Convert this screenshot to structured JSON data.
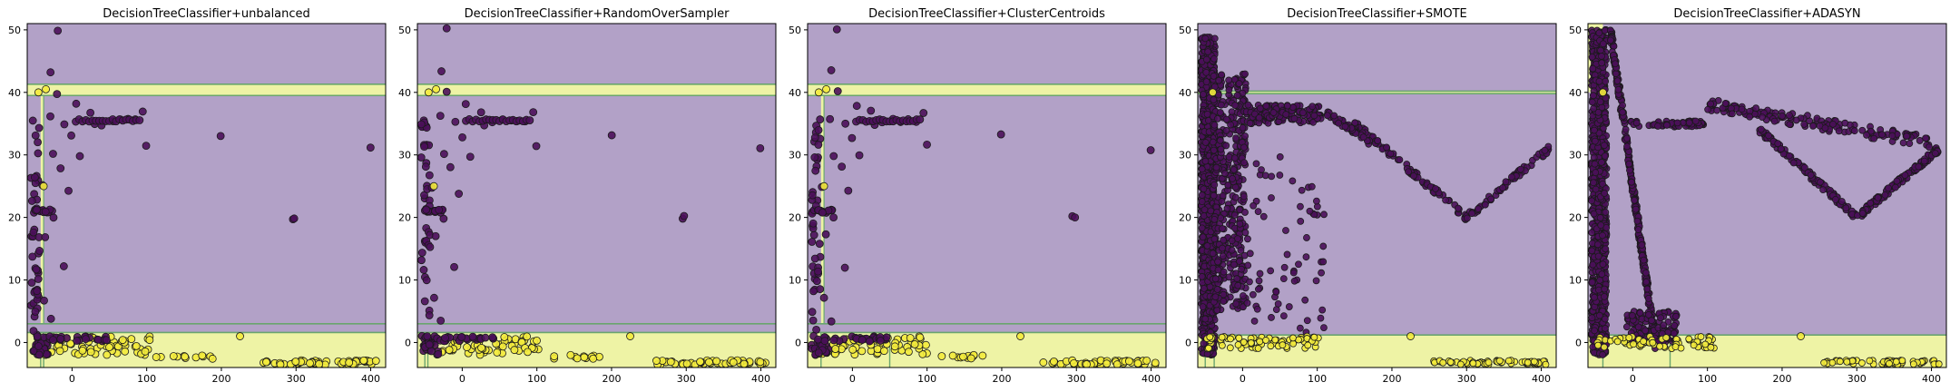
{
  "chart_data": [
    {
      "type": "scatter",
      "title": "DecisionTreeClassifier+unbalanced",
      "xlim": [
        -60,
        420
      ],
      "ylim": [
        -4,
        51
      ],
      "xticks": [
        0,
        100,
        200,
        300,
        400
      ],
      "yticks": [
        0,
        10,
        20,
        30,
        40,
        50
      ],
      "colors": {
        "region_major": "#b2a1c7",
        "region_minor": "#eef3a5",
        "boundary": "#6aa56e",
        "point_major": "#4b0f5a",
        "point_minor": "#f3eb3c",
        "edge": "#1a1a1a"
      },
      "regions": [
        {
          "class": "minor",
          "x": [
            -60,
            420
          ],
          "y": [
            -4,
            1.6
          ]
        },
        {
          "class": "major",
          "x": [
            -60,
            420
          ],
          "y": [
            1.6,
            3.0
          ]
        },
        {
          "class": "major",
          "x": [
            -60,
            420
          ],
          "y": [
            3.0,
            39.5
          ]
        },
        {
          "class": "minor",
          "x": [
            -60,
            420
          ],
          "y": [
            39.5,
            41.3
          ]
        },
        {
          "class": "major",
          "x": [
            -60,
            420
          ],
          "y": [
            41.3,
            51
          ]
        },
        {
          "class": "minor",
          "x": [
            -42,
            -38
          ],
          "y": [
            3.0,
            39.5
          ]
        }
      ],
      "boundaries": {
        "h": [
          1.6,
          3.0,
          39.5,
          41.3
        ],
        "v": [
          -42,
          -38
        ]
      },
      "pattern": "sparse"
    },
    {
      "type": "scatter",
      "title": "DecisionTreeClassifier+RandomOverSampler",
      "xlim": [
        -60,
        420
      ],
      "ylim": [
        -4,
        51
      ],
      "xticks": [
        0,
        100,
        200,
        300,
        400
      ],
      "yticks": [
        0,
        10,
        20,
        30,
        40,
        50
      ],
      "colors": {
        "region_major": "#b2a1c7",
        "region_minor": "#eef3a5",
        "boundary": "#6aa56e",
        "point_major": "#4b0f5a",
        "point_minor": "#f3eb3c",
        "edge": "#1a1a1a"
      },
      "regions": [
        {
          "class": "minor",
          "x": [
            -60,
            420
          ],
          "y": [
            -4,
            1.6
          ]
        },
        {
          "class": "major",
          "x": [
            -60,
            420
          ],
          "y": [
            1.6,
            3.0
          ]
        },
        {
          "class": "major",
          "x": [
            -60,
            420
          ],
          "y": [
            3.0,
            39.5
          ]
        },
        {
          "class": "minor",
          "x": [
            -60,
            420
          ],
          "y": [
            39.5,
            41.3
          ]
        },
        {
          "class": "major",
          "x": [
            -60,
            420
          ],
          "y": [
            41.3,
            51
          ]
        }
      ],
      "boundaries": {
        "h": [
          1.6,
          3.0,
          39.5,
          41.3
        ],
        "v": [
          -50,
          -46
        ]
      },
      "pattern": "sparse"
    },
    {
      "type": "scatter",
      "title": "DecisionTreeClassifier+ClusterCentroids",
      "xlim": [
        -60,
        420
      ],
      "ylim": [
        -4,
        51
      ],
      "xticks": [
        0,
        100,
        200,
        300,
        400
      ],
      "yticks": [
        0,
        10,
        20,
        30,
        40,
        50
      ],
      "colors": {
        "region_major": "#b2a1c7",
        "region_minor": "#eef3a5",
        "boundary": "#6aa56e",
        "point_major": "#4b0f5a",
        "point_minor": "#f3eb3c",
        "edge": "#1a1a1a"
      },
      "regions": [
        {
          "class": "minor",
          "x": [
            -60,
            420
          ],
          "y": [
            -4,
            1.6
          ]
        },
        {
          "class": "major",
          "x": [
            -60,
            420
          ],
          "y": [
            1.6,
            3.0
          ]
        },
        {
          "class": "major",
          "x": [
            -60,
            420
          ],
          "y": [
            3.0,
            39.5
          ]
        },
        {
          "class": "minor",
          "x": [
            -60,
            420
          ],
          "y": [
            39.5,
            41.3
          ]
        },
        {
          "class": "major",
          "x": [
            -60,
            420
          ],
          "y": [
            41.3,
            51
          ]
        },
        {
          "class": "minor",
          "x": [
            -42,
            -38
          ],
          "y": [
            3.0,
            39.5
          ]
        }
      ],
      "boundaries": {
        "h": [
          1.6,
          3.0,
          39.5,
          41.3
        ],
        "v": [
          -42,
          50
        ]
      },
      "pattern": "sparse"
    },
    {
      "type": "scatter",
      "title": "DecisionTreeClassifier+SMOTE",
      "xlim": [
        -60,
        420
      ],
      "ylim": [
        -4,
        51
      ],
      "xticks": [
        0,
        100,
        200,
        300,
        400
      ],
      "yticks": [
        0,
        10,
        20,
        30,
        40,
        50
      ],
      "colors": {
        "region_major": "#b2a1c7",
        "region_minor": "#eef3a5",
        "boundary": "#6aa56e",
        "point_major": "#4b0f5a",
        "point_minor": "#f3eb3c",
        "edge": "#1a1a1a"
      },
      "regions": [
        {
          "class": "minor",
          "x": [
            -60,
            420
          ],
          "y": [
            -4,
            1.2
          ]
        },
        {
          "class": "major",
          "x": [
            -60,
            420
          ],
          "y": [
            1.2,
            39.8
          ]
        },
        {
          "class": "minor",
          "x": [
            -60,
            420
          ],
          "y": [
            39.8,
            40.2
          ]
        },
        {
          "class": "major",
          "x": [
            -60,
            420
          ],
          "y": [
            40.2,
            51
          ]
        }
      ],
      "boundaries": {
        "h": [
          1.2,
          39.8,
          40.2
        ],
        "v": [
          -50,
          -38
        ]
      },
      "pattern": "dense-smote"
    },
    {
      "type": "scatter",
      "title": "DecisionTreeClassifier+ADASYN",
      "xlim": [
        -60,
        420
      ],
      "ylim": [
        -4,
        51
      ],
      "xticks": [
        0,
        100,
        200,
        300,
        400
      ],
      "yticks": [
        0,
        10,
        20,
        30,
        40,
        50
      ],
      "colors": {
        "region_major": "#b2a1c7",
        "region_minor": "#eef3a5",
        "boundary": "#6aa56e",
        "point_major": "#4b0f5a",
        "point_minor": "#f3eb3c",
        "edge": "#1a1a1a"
      },
      "regions": [
        {
          "class": "minor",
          "x": [
            -60,
            420
          ],
          "y": [
            -4,
            1.2
          ]
        },
        {
          "class": "major",
          "x": [
            -60,
            420
          ],
          "y": [
            1.2,
            51
          ]
        },
        {
          "class": "minor",
          "x": [
            -60,
            -40
          ],
          "y": [
            40,
            51
          ]
        }
      ],
      "boundaries": {
        "h": [
          1.2
        ],
        "v": [
          -40,
          50
        ]
      },
      "pattern": "dense-adasyn"
    }
  ]
}
